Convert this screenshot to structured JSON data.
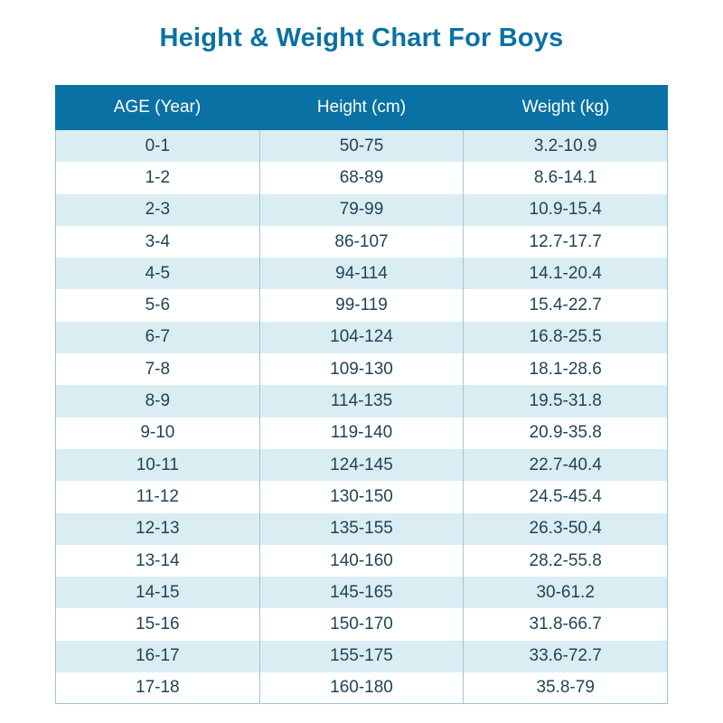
{
  "title": "Height & Weight Chart For Boys",
  "chart_data": {
    "type": "table",
    "title": "Height & Weight Chart For Boys",
    "columns": [
      "AGE (Year)",
      "Height (cm)",
      "Weight (kg)"
    ],
    "rows": [
      [
        "0-1",
        "50-75",
        "3.2-10.9"
      ],
      [
        "1-2",
        "68-89",
        "8.6-14.1"
      ],
      [
        "2-3",
        "79-99",
        "10.9-15.4"
      ],
      [
        "3-4",
        "86-107",
        "12.7-17.7"
      ],
      [
        "4-5",
        "94-114",
        "14.1-20.4"
      ],
      [
        "5-6",
        "99-119",
        "15.4-22.7"
      ],
      [
        "6-7",
        "104-124",
        "16.8-25.5"
      ],
      [
        "7-8",
        "109-130",
        "18.1-28.6"
      ],
      [
        "8-9",
        "114-135",
        "19.5-31.8"
      ],
      [
        "9-10",
        "119-140",
        "20.9-35.8"
      ],
      [
        "10-11",
        "124-145",
        "22.7-40.4"
      ],
      [
        "11-12",
        "130-150",
        "24.5-45.4"
      ],
      [
        "12-13",
        "135-155",
        "26.3-50.4"
      ],
      [
        "13-14",
        "140-160",
        "28.2-55.8"
      ],
      [
        "14-15",
        "145-165",
        "30-61.2"
      ],
      [
        "15-16",
        "150-170",
        "31.8-66.7"
      ],
      [
        "16-17",
        "155-175",
        "33.6-72.7"
      ],
      [
        "17-18",
        "160-180",
        "35.8-79"
      ]
    ]
  },
  "colors": {
    "header_bg": "#0a71a4",
    "title": "#0a71a4",
    "stripe": "#daedf3",
    "text": "#1e4557"
  }
}
